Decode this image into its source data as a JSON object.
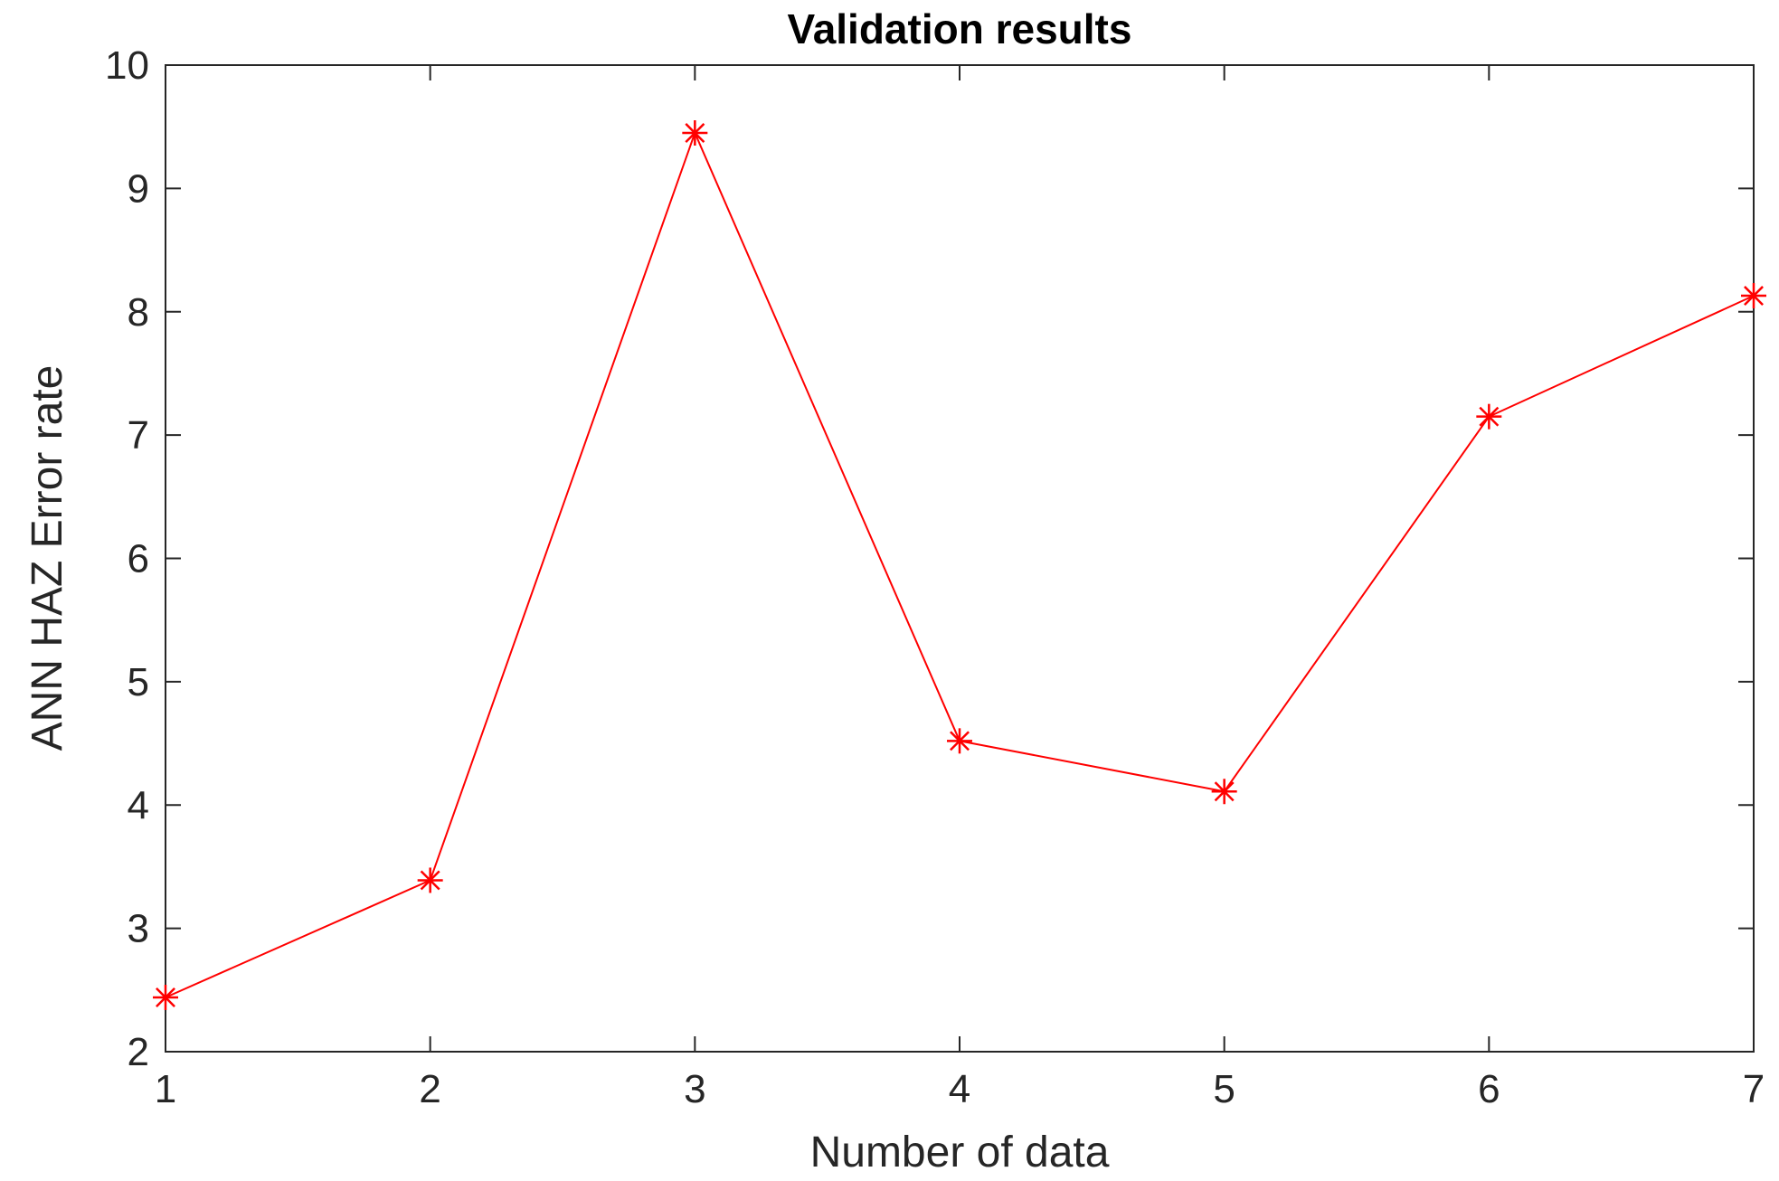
{
  "chart_data": {
    "type": "line",
    "title": "Validation results",
    "xlabel": "Number of data",
    "ylabel": "ANN HAZ Error rate",
    "xlim": [
      1,
      7
    ],
    "ylim": [
      2,
      10
    ],
    "xticks": [
      1,
      2,
      3,
      4,
      5,
      6,
      7
    ],
    "yticks": [
      2,
      3,
      4,
      5,
      6,
      7,
      8,
      9,
      10
    ],
    "grid": false,
    "marker": "asterisk",
    "series_color": "#ff0000",
    "series": [
      {
        "x": [
          1,
          2,
          3,
          4,
          5,
          6,
          7
        ],
        "values": [
          2.44,
          3.39,
          9.45,
          4.52,
          4.11,
          7.15,
          8.13
        ]
      }
    ]
  }
}
